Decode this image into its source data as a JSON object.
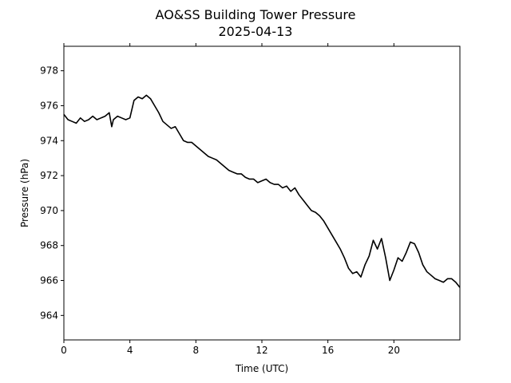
{
  "chart_data": {
    "type": "line",
    "title": "AO&SS Building Tower Pressure",
    "subtitle": "2025-04-13",
    "xlabel": "Time (UTC)",
    "ylabel": "Pressure (hPa)",
    "xlim": [
      0,
      24
    ],
    "ylim": [
      962.6,
      979.4
    ],
    "x_ticks": [
      0,
      4,
      8,
      12,
      16,
      20
    ],
    "y_ticks": [
      964,
      966,
      968,
      970,
      972,
      974,
      976,
      978
    ],
    "grid": false,
    "line_color": "#000000",
    "series": [
      {
        "x": [
          0,
          0.25,
          0.5,
          0.75,
          1.0,
          1.25,
          1.5,
          1.75,
          2.0,
          2.25,
          2.5,
          2.75,
          2.9,
          3.0,
          3.25,
          3.5,
          3.75,
          4.0,
          4.25,
          4.5,
          4.75,
          5.0,
          5.25,
          5.5,
          5.75,
          6.0,
          6.25,
          6.5,
          6.75,
          7.0,
          7.25,
          7.5,
          7.75,
          8.0,
          8.25,
          8.5,
          8.75,
          9.0,
          9.25,
          9.5,
          9.75,
          10.0,
          10.25,
          10.5,
          10.75,
          11.0,
          11.25,
          11.5,
          11.75,
          12.0,
          12.25,
          12.5,
          12.75,
          13.0,
          13.25,
          13.5,
          13.75,
          14.0,
          14.25,
          14.5,
          14.75,
          15.0,
          15.25,
          15.5,
          15.75,
          16.0,
          16.25,
          16.5,
          16.75,
          17.0,
          17.25,
          17.5,
          17.75,
          18.0,
          18.25,
          18.5,
          18.75,
          19.0,
          19.25,
          19.5,
          19.75,
          20.0,
          20.25,
          20.5,
          20.75,
          21.0,
          21.25,
          21.5,
          21.75,
          22.0,
          22.25,
          22.5,
          22.75,
          23.0,
          23.25,
          23.5,
          23.75,
          24.0
        ],
        "values": [
          975.5,
          975.2,
          975.1,
          975.0,
          975.3,
          975.1,
          975.2,
          975.4,
          975.2,
          975.3,
          975.4,
          975.6,
          974.8,
          975.2,
          975.4,
          975.3,
          975.2,
          975.3,
          976.3,
          976.5,
          976.4,
          976.6,
          976.4,
          976.0,
          975.6,
          975.1,
          974.9,
          974.7,
          974.8,
          974.4,
          974.0,
          973.9,
          973.9,
          973.7,
          973.5,
          973.3,
          973.1,
          973.0,
          972.9,
          972.7,
          972.5,
          972.3,
          972.2,
          972.1,
          972.1,
          971.9,
          971.8,
          971.8,
          971.6,
          971.7,
          971.8,
          971.6,
          971.5,
          971.5,
          971.3,
          971.4,
          971.1,
          971.3,
          970.9,
          970.6,
          970.3,
          970.0,
          969.9,
          969.7,
          969.4,
          969.0,
          968.6,
          968.2,
          967.8,
          967.3,
          966.7,
          966.4,
          966.5,
          966.2,
          966.9,
          967.4,
          968.3,
          967.8,
          968.4,
          967.3,
          966.0,
          966.6,
          967.3,
          967.1,
          967.6,
          968.2,
          968.1,
          967.6,
          966.9,
          966.5,
          966.3,
          966.1,
          966.0,
          965.9,
          966.1,
          966.1,
          965.9,
          965.6
        ]
      }
    ]
  }
}
